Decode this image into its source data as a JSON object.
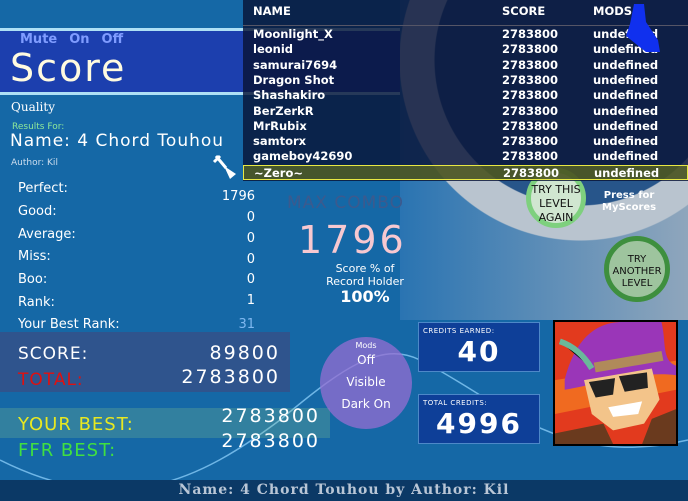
{
  "header": {
    "mute_label": "Mute",
    "mute_on": "On",
    "mute_off": "Off",
    "title": "Score"
  },
  "info": {
    "quality": "Quality",
    "results_for": "Results For:",
    "song_name": "Name: 4 Chord Touhou",
    "author": "Author: Kil"
  },
  "stats": [
    {
      "label": "Perfect:",
      "value": "1796"
    },
    {
      "label": "Good:",
      "value": "0"
    },
    {
      "label": "Average:",
      "value": "0"
    },
    {
      "label": "Miss:",
      "value": "0"
    },
    {
      "label": "Boo:",
      "value": "0"
    },
    {
      "label": "Rank:",
      "value": "1"
    },
    {
      "label": "Your Best Rank:",
      "value": "31"
    }
  ],
  "totals": {
    "score_label": "SCORE:",
    "score": "89800",
    "total_label": "TOTAL:",
    "total": "2783800",
    "your_best_label": "YOUR BEST:",
    "your_best": "2783800",
    "ffr_best_label": "FFR BEST:",
    "ffr_best": "2783800"
  },
  "combo": {
    "label": "MAX COMBO",
    "value": "1796",
    "pct_label_1": "Score % of",
    "pct_label_2": "Record Holder",
    "pct_value": "100%"
  },
  "mods": {
    "title": "Mods",
    "items": [
      "Off",
      "Visible",
      "Dark On"
    ]
  },
  "credits": {
    "earned_label": "CREDITS EARNED:",
    "earned": "40",
    "total_label": "TOTAL CREDITS:",
    "total": "4996"
  },
  "buttons": {
    "try_again": [
      "TRY THIS",
      "LEVEL",
      "AGAIN"
    ],
    "try_another": [
      "TRY",
      "ANOTHER",
      "LEVEL"
    ],
    "press_for": "Press for",
    "my_scores": "MyScores"
  },
  "leaderboard": {
    "headers": [
      "NAME",
      "SCORE",
      "MODS"
    ],
    "rows": [
      {
        "name": "Moonlight_X",
        "score": "2783800",
        "mods": "undefined"
      },
      {
        "name": "leonid",
        "score": "2783800",
        "mods": "undefined"
      },
      {
        "name": "samurai7694",
        "score": "2783800",
        "mods": "undefined"
      },
      {
        "name": "Dragon Shot",
        "score": "2783800",
        "mods": "undefined"
      },
      {
        "name": "Shashakiro",
        "score": "2783800",
        "mods": "undefined"
      },
      {
        "name": "BerZerkR",
        "score": "2783800",
        "mods": "undefined"
      },
      {
        "name": "MrRubix",
        "score": "2783800",
        "mods": "undefined"
      },
      {
        "name": "samtorx",
        "score": "2783800",
        "mods": "undefined"
      },
      {
        "name": "gameboy42690",
        "score": "2783800",
        "mods": "undefined"
      },
      {
        "name": "~Zero~",
        "score": "2783800",
        "mods": "undefined"
      }
    ],
    "highlight_index": 9
  },
  "footer": "Name: 4 Chord Touhou by Author: Kil",
  "colors": {
    "background": "#1568a6",
    "header_band": "#1c3fae",
    "total_label": "#e01010",
    "your_best_label": "#e8e820",
    "ffr_best_label": "#40e040",
    "combo_value": "#f7c8d0"
  }
}
